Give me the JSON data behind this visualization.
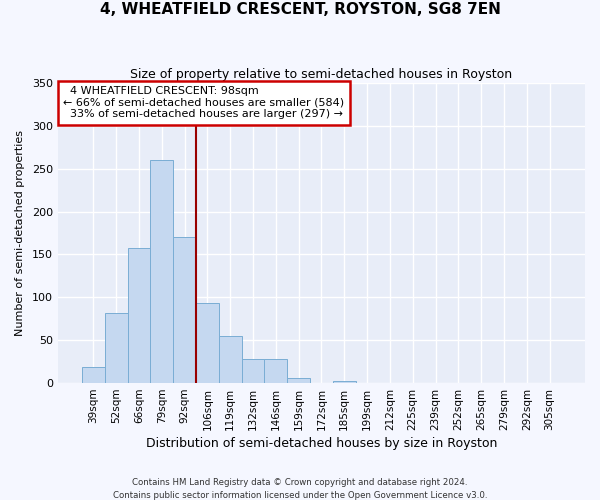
{
  "title": "4, WHEATFIELD CRESCENT, ROYSTON, SG8 7EN",
  "subtitle": "Size of property relative to semi-detached houses in Royston",
  "xlabel": "Distribution of semi-detached houses by size in Royston",
  "ylabel": "Number of semi-detached properties",
  "footer_line1": "Contains HM Land Registry data © Crown copyright and database right 2024.",
  "footer_line2": "Contains public sector information licensed under the Open Government Licence v3.0.",
  "bar_labels": [
    "39sqm",
    "52sqm",
    "66sqm",
    "79sqm",
    "92sqm",
    "106sqm",
    "119sqm",
    "132sqm",
    "146sqm",
    "159sqm",
    "172sqm",
    "185sqm",
    "199sqm",
    "212sqm",
    "225sqm",
    "239sqm",
    "252sqm",
    "265sqm",
    "279sqm",
    "292sqm",
    "305sqm"
  ],
  "bar_values": [
    19,
    82,
    158,
    260,
    170,
    93,
    55,
    28,
    28,
    6,
    0,
    2,
    0,
    0,
    0,
    0,
    0,
    0,
    0,
    0,
    0
  ],
  "bar_color": "#c5d8f0",
  "bar_edge_color": "#7aadd4",
  "vline_color": "#990000",
  "vline_bin_index": 4,
  "annotation_title": "4 WHEATFIELD CRESCENT: 98sqm",
  "annotation_line1": "← 66% of semi-detached houses are smaller (584)",
  "annotation_line2": "  33% of semi-detached houses are larger (297) →",
  "annotation_box_color": "#cc0000",
  "ylim": [
    0,
    350
  ],
  "yticks": [
    0,
    50,
    100,
    150,
    200,
    250,
    300,
    350
  ],
  "background_color": "#f5f7ff",
  "plot_bg_color": "#e8edf8",
  "grid_color": "#ffffff"
}
